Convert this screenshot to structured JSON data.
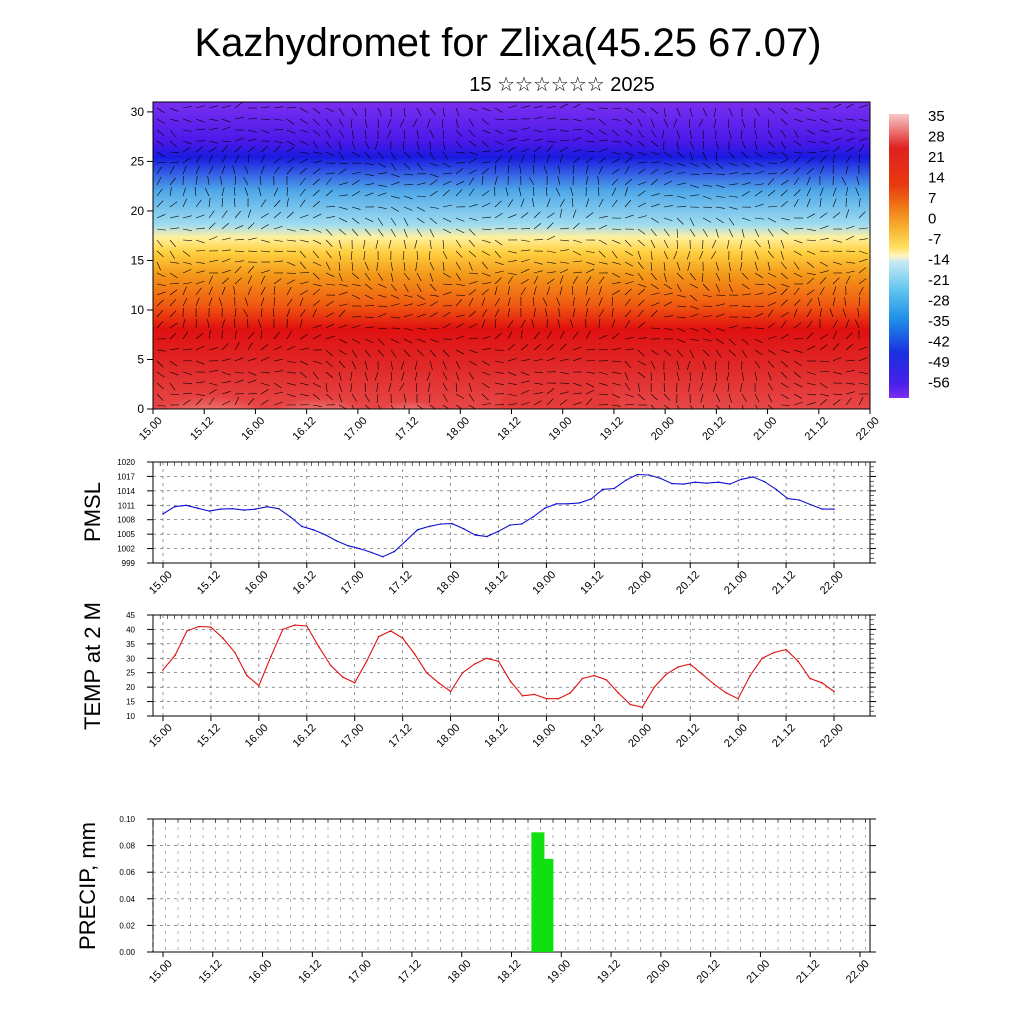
{
  "title": "Kazhydromet for Zlixa(45.25 67.07)",
  "subtitle": "15 ☆☆☆☆☆☆ 2025",
  "time_labels": [
    "15.00",
    "15.12",
    "16.00",
    "16.12",
    "17.00",
    "17.12",
    "18.00",
    "18.12",
    "19.00",
    "19.12",
    "20.00",
    "20.12",
    "21.00",
    "21.12",
    "22.00"
  ],
  "chart_data": [
    {
      "type": "heatmap",
      "name": "cross-section",
      "y_ticks": [
        0,
        5,
        10,
        15,
        20,
        25,
        30
      ],
      "ylim": [
        0,
        31
      ],
      "colorbar": {
        "labels": [
          "35",
          "28",
          "21",
          "14",
          "7",
          "0",
          "-7",
          "-14",
          "-21",
          "-28",
          "-35",
          "-42",
          "-49",
          "-56"
        ]
      },
      "colors": {
        "hot": "#f8c0c0",
        "red": "#e01010",
        "orange": "#f39a1a",
        "yellow": "#ffe050",
        "lightblue": "#a0dcf0",
        "blue": "#1a1ae0",
        "violet": "#7a2ff0"
      }
    },
    {
      "type": "line",
      "name": "PMSL",
      "ylabel": "PMSL",
      "ylim": [
        999,
        1020
      ],
      "y_ticks": [
        "1020",
        "1017",
        "1014",
        "1011",
        "1008",
        "1005",
        "1002",
        "999"
      ],
      "color": "#1010d0",
      "values": [
        1009.2,
        1010.7,
        1011,
        1010.4,
        1009.8,
        1010.2,
        1010.3,
        1010,
        1010.2,
        1010.7,
        1010.3,
        1008.6,
        1006.6,
        1005.9,
        1004.9,
        1003.6,
        1002.6,
        1002,
        1001.2,
        1000.3,
        1001.4,
        1003.6,
        1005.9,
        1006.6,
        1007.1,
        1007.2,
        1006.1,
        1004.8,
        1004.5,
        1005.6,
        1006.9,
        1007.1,
        1008.6,
        1010.4,
        1011.3,
        1011.3,
        1011.5,
        1012.3,
        1014.3,
        1014.5,
        1016.2,
        1017.4,
        1017.3,
        1016.6,
        1015.5,
        1015.4,
        1015.8,
        1015.6,
        1015.8,
        1015.4,
        1016.4,
        1016.9,
        1015.9,
        1014.3,
        1012.4,
        1012.1,
        1011.1,
        1010.2,
        1010.2
      ]
    },
    {
      "type": "line",
      "name": "TEMP",
      "ylabel": "TEMP at 2 M",
      "ylim": [
        10,
        45
      ],
      "y_ticks": [
        "45",
        "40",
        "35",
        "30",
        "25",
        "20",
        "15",
        "10"
      ],
      "color": "#e01010",
      "values": [
        26,
        31,
        39.5,
        41,
        40.8,
        37,
        32,
        24,
        20.5,
        30.5,
        40,
        41.5,
        41.2,
        34,
        27.5,
        23.5,
        21.5,
        29,
        37.5,
        39.5,
        37,
        31.5,
        25,
        21.5,
        18.5,
        25,
        28,
        30,
        29,
        22,
        17,
        17.5,
        16,
        16,
        18,
        23,
        24,
        22.5,
        18,
        14,
        13,
        20,
        24.5,
        27,
        28,
        24.5,
        21,
        18,
        16,
        24,
        30,
        32,
        33,
        29,
        23,
        21.5,
        18.5
      ]
    },
    {
      "type": "bar",
      "name": "PRECIP",
      "ylabel": "PRECIP, mm",
      "ylim": [
        0,
        0.1
      ],
      "y_ticks": [
        "0.10",
        "0.08",
        "0.06",
        "0.04",
        "0.02",
        "0.00"
      ],
      "color": "#10e010",
      "bars": [
        {
          "t": 3.7,
          "value": 0.09
        },
        {
          "t": 3.79,
          "value": 0.07
        }
      ]
    }
  ]
}
